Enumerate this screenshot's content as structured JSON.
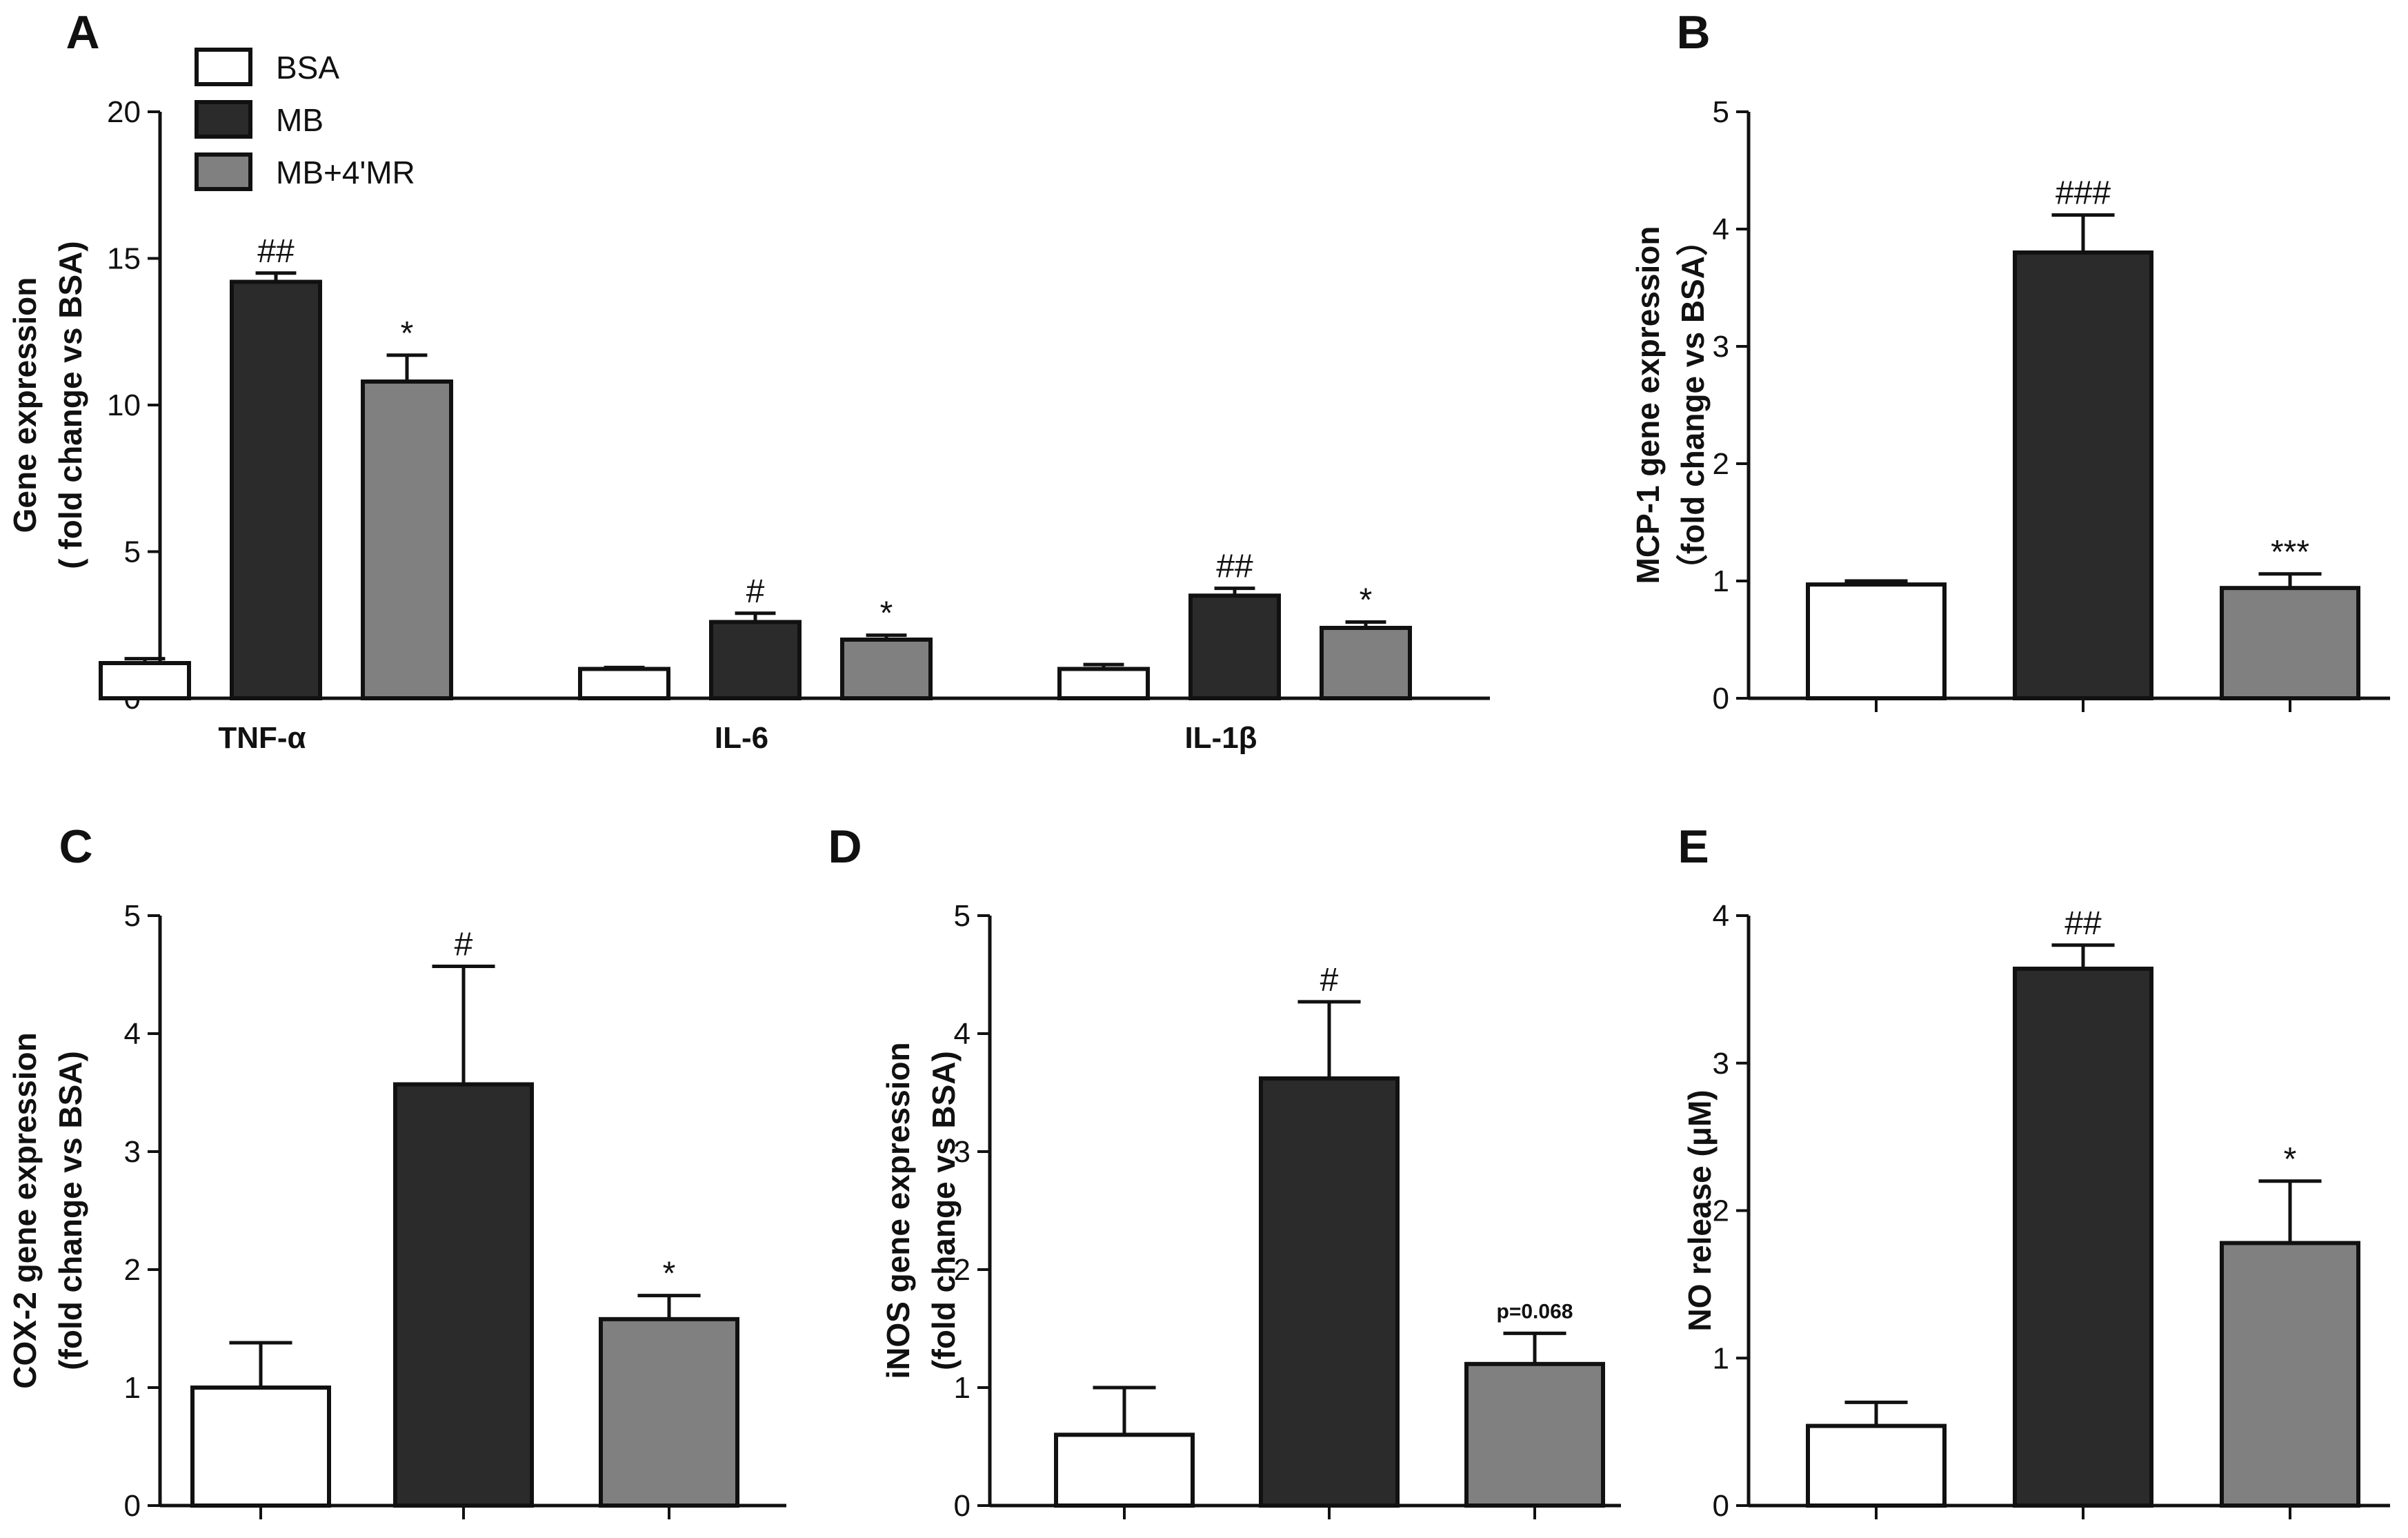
{
  "colors": {
    "BSA": "#ffffff",
    "MB": "#2b2b2b",
    "MB+4'MR": "#808080",
    "stroke": "#111111"
  },
  "legend": {
    "items": [
      {
        "label": "BSA",
        "series": "BSA"
      },
      {
        "label": "MB",
        "series": "MB"
      },
      {
        "label": "MB+4'MR",
        "series": "MB+4'MR"
      }
    ]
  },
  "chart_data": [
    {
      "id": "A",
      "letter": "A",
      "type": "bar",
      "ylabel_lines": [
        "Gene expression",
        "( fold change vs BSA)"
      ],
      "ylim": [
        0,
        20
      ],
      "yticks": [
        0,
        5,
        10,
        15,
        20
      ],
      "categories": [
        "TNF-α",
        "IL-6",
        "IL-1β"
      ],
      "series": [
        {
          "name": "BSA",
          "values": [
            1.2,
            1.0,
            1.0
          ],
          "errors": [
            0.15,
            0.05,
            0.15
          ],
          "annotations": [
            "",
            "",
            ""
          ]
        },
        {
          "name": "MB",
          "values": [
            14.2,
            2.6,
            3.5
          ],
          "errors": [
            0.3,
            0.3,
            0.25
          ],
          "annotations": [
            "##",
            "#",
            "##"
          ]
        },
        {
          "name": "MB+4'MR",
          "values": [
            10.8,
            2.0,
            2.4
          ],
          "errors": [
            0.9,
            0.15,
            0.2
          ],
          "annotations": [
            "*",
            "*",
            "*"
          ]
        }
      ]
    },
    {
      "id": "B",
      "letter": "B",
      "type": "bar",
      "ylabel_lines": [
        "MCP-1  gene expression",
        "（fold change vs BSA）"
      ],
      "ylim": [
        0,
        5
      ],
      "yticks": [
        0,
        1,
        2,
        3,
        4,
        5
      ],
      "categories": [
        "BSA",
        "MB",
        "MB+4'MR"
      ],
      "values": [
        0.97,
        3.8,
        0.94
      ],
      "errors": [
        0.03,
        0.32,
        0.12
      ],
      "annotations": [
        "",
        "###",
        "***"
      ]
    },
    {
      "id": "C",
      "letter": "C",
      "type": "bar",
      "ylabel_lines": [
        "COX-2 gene expression",
        "(fold change vs BSA)"
      ],
      "ylim": [
        0,
        5
      ],
      "yticks": [
        0,
        1,
        2,
        3,
        4,
        5
      ],
      "categories": [
        "BSA",
        "MB",
        "MB+4'MR"
      ],
      "values": [
        1.0,
        3.57,
        1.58
      ],
      "errors": [
        0.38,
        1.0,
        0.2
      ],
      "annotations": [
        "",
        "#",
        "*"
      ]
    },
    {
      "id": "D",
      "letter": "D",
      "type": "bar",
      "ylabel_lines": [
        "iNOS  gene expression",
        "(fold change vs BSA)"
      ],
      "ylim": [
        0,
        5
      ],
      "yticks": [
        0,
        1,
        2,
        3,
        4,
        5
      ],
      "categories": [
        "BSA",
        "MB",
        "MB+4'MR"
      ],
      "values": [
        0.6,
        3.62,
        1.2
      ],
      "errors": [
        0.4,
        0.65,
        0.26
      ],
      "annotations": [
        "",
        "#",
        "p=0.068"
      ]
    },
    {
      "id": "E",
      "letter": "E",
      "type": "bar",
      "ylabel_lines": [
        "NO release (μM)"
      ],
      "ylim": [
        0,
        4
      ],
      "yticks": [
        0,
        1,
        2,
        3,
        4
      ],
      "categories": [
        "BSA",
        "MB",
        "MB+4'MR"
      ],
      "values": [
        0.54,
        3.64,
        1.78
      ],
      "errors": [
        0.16,
        0.16,
        0.42
      ],
      "annotations": [
        "",
        "##",
        "*"
      ]
    }
  ]
}
